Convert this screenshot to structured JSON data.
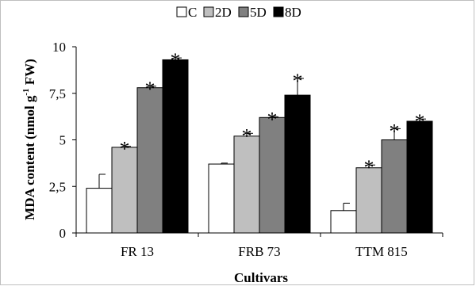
{
  "chart_data": {
    "type": "bar",
    "title": "",
    "xlabel": "Cultivars",
    "ylabel": "MDA content (nmol g⁻¹ FW)",
    "ylabel_parts": {
      "main": "MDA content (nmol g",
      "sup": "-1",
      "tail": " FW)"
    },
    "ylim": [
      0,
      10
    ],
    "yticks": [
      0,
      2.5,
      5,
      7.5,
      10
    ],
    "ytick_labels": [
      "0",
      "2,5",
      "5",
      "7,5",
      "10"
    ],
    "categories": [
      "FR 13",
      "FRB 73",
      "TTM 815"
    ],
    "series": [
      {
        "name": "C",
        "color": "#ffffff",
        "values": [
          2.4,
          3.7,
          1.2
        ],
        "errors": [
          0.75,
          0.05,
          0.4
        ],
        "significant": [
          false,
          false,
          false
        ]
      },
      {
        "name": "2D",
        "color": "#bfbfbf",
        "values": [
          4.6,
          5.2,
          3.5
        ],
        "errors": [
          0.05,
          0.15,
          0.15
        ],
        "significant": [
          true,
          true,
          true
        ]
      },
      {
        "name": "5D",
        "color": "#808080",
        "values": [
          7.8,
          6.2,
          5.0
        ],
        "errors": [
          0.08,
          0.04,
          0.6
        ],
        "significant": [
          true,
          true,
          true
        ]
      },
      {
        "name": "8D",
        "color": "#000000",
        "values": [
          9.3,
          7.4,
          6.0
        ],
        "errors": [
          0.1,
          0.9,
          0.12
        ],
        "significant": [
          true,
          true,
          true
        ]
      }
    ],
    "significance_marker": "*",
    "legend_position": "top-center",
    "grid": false
  }
}
